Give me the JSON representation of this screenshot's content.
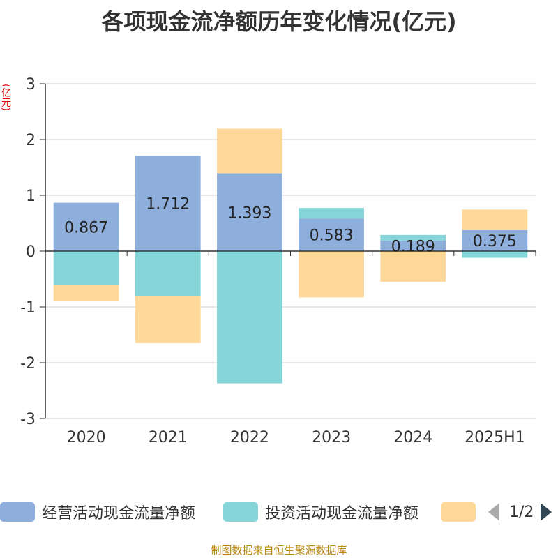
{
  "title": "各项现金流净额历年变化情况(亿元)",
  "unit_label": "(亿元)",
  "source": "制图数据来自恒生聚源数据库",
  "legend": {
    "items": [
      {
        "label": "经营活动现金流量净额",
        "color": "#8eaedb"
      },
      {
        "label": "投资活动现金流量净额",
        "color": "#85d4d8"
      },
      {
        "label": "",
        "color": "#fdd899"
      }
    ],
    "page": "1/2"
  },
  "chart_data": {
    "type": "bar",
    "stacked": true,
    "categories": [
      "2020",
      "2021",
      "2022",
      "2023",
      "2024",
      "2025H1"
    ],
    "ylim": [
      -3,
      3
    ],
    "yticks": [
      3,
      2,
      1,
      0,
      -1,
      -2,
      -3
    ],
    "grid": true,
    "legend_position": "bottom",
    "series": [
      {
        "name": "经营活动现金流量净额",
        "color": "#8eaedb",
        "values": [
          0.867,
          1.712,
          1.393,
          0.583,
          0.189,
          0.375
        ],
        "labels": [
          "0.867",
          "1.712",
          "1.393",
          "0.583",
          "0.189",
          "0.375"
        ]
      },
      {
        "name": "投资活动现金流量净额",
        "color": "#85d4d8",
        "values": [
          -0.6,
          -0.8,
          -2.37,
          0.19,
          0.1,
          -0.12
        ]
      },
      {
        "color": "#fdd899",
        "values": [
          -0.3,
          -0.85,
          0.8,
          -0.83,
          -0.55,
          0.37
        ]
      }
    ]
  }
}
